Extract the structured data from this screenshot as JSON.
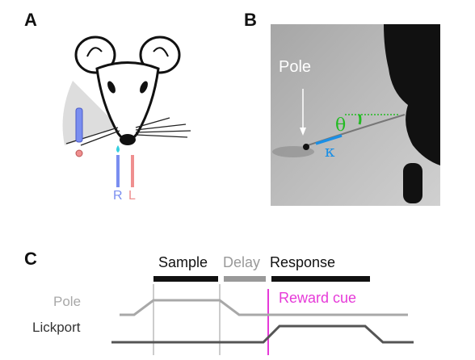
{
  "panels": {
    "a": "A",
    "b": "B",
    "c": "C"
  },
  "panel_a": {
    "lickport_right": "R",
    "lickport_left": "L"
  },
  "panel_b": {
    "pole_label": "Pole",
    "angle_symbol": "θ",
    "curvature_symbol": "κ"
  },
  "panel_c": {
    "epochs": {
      "sample": "Sample",
      "delay": "Delay",
      "response": "Response"
    },
    "traces": {
      "pole": "Pole",
      "lickport": "Lickport"
    },
    "reward_cue": "Reward cue"
  },
  "colors": {
    "right_lickport": "#7a8ef0",
    "left_lickport": "#ef8f8f",
    "theta": "#22bb22",
    "kappa": "#1a8fe6",
    "reward_cue": "#e63ad8",
    "pole_trace": "#a8a8a8",
    "lickport_trace": "#555555"
  }
}
